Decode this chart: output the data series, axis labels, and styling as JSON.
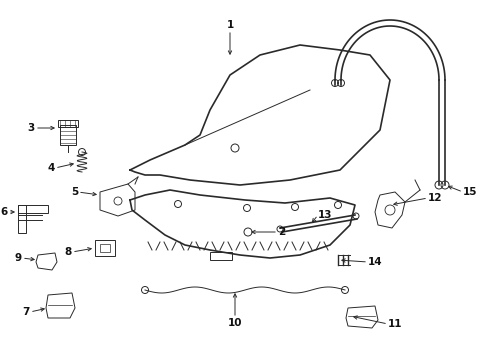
{
  "bg_color": "#ffffff",
  "line_color": "#2a2a2a",
  "label_color": "#111111",
  "font_size": 7.5,
  "lw_main": 1.2,
  "lw_thin": 0.7,
  "lw_thick": 1.5
}
